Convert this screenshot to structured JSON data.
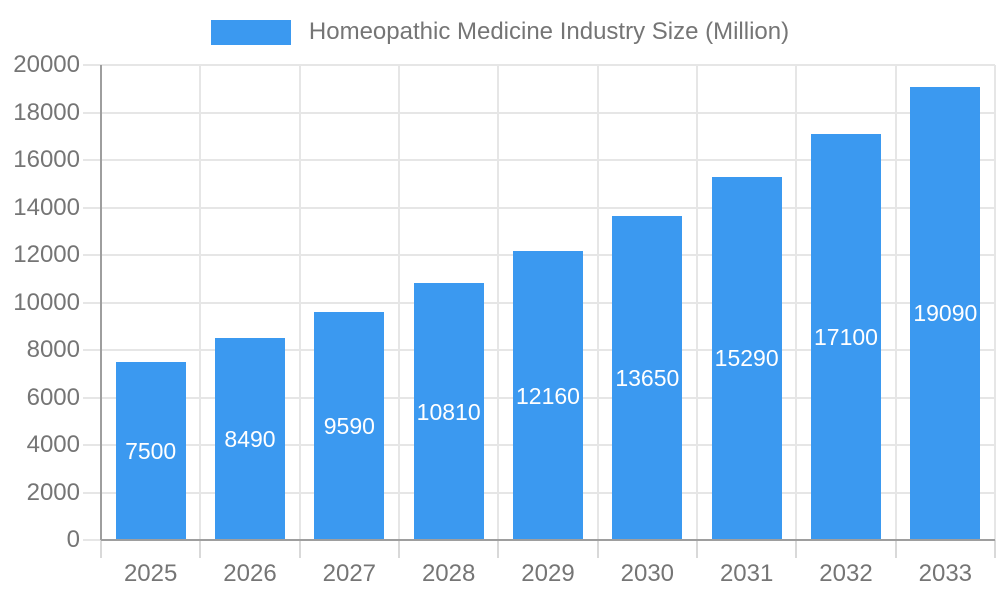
{
  "legend": {
    "label": "Homeopathic Medicine Industry Size (Million)"
  },
  "chart_data": {
    "type": "bar",
    "title": "Homeopathic Medicine Industry Size (Million)",
    "categories": [
      "2025",
      "2026",
      "2027",
      "2028",
      "2029",
      "2030",
      "2031",
      "2032",
      "2033"
    ],
    "values": [
      7500,
      8490,
      9590,
      10810,
      12160,
      13650,
      15290,
      17100,
      19090
    ],
    "xlabel": "",
    "ylabel": "",
    "ylim": [
      0,
      20000
    ],
    "ytick_step": 2000,
    "yticks": [
      0,
      2000,
      4000,
      6000,
      8000,
      10000,
      12000,
      14000,
      16000,
      18000,
      20000
    ],
    "grid": true,
    "legend_position": "top-center",
    "bar_labels_inside": true,
    "colors": {
      "bar": "#3B99F0",
      "bar_label": "#FFFFFF",
      "axis_text": "#757575",
      "axis_line": "#9E9E9E",
      "grid_line": "#E6E6E6",
      "tick_line": "#D9D9D9",
      "background": "#FFFFFF"
    }
  }
}
